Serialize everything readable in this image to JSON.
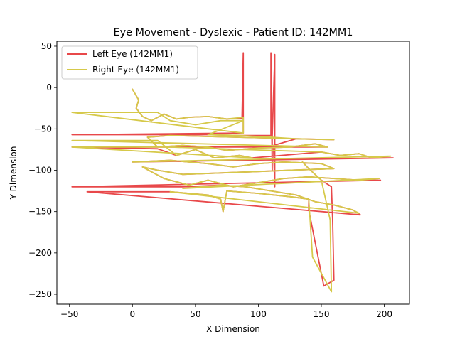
{
  "chart_data": {
    "type": "line",
    "title": "Eye Movement - Dyslexic - Patient ID: 142MM1",
    "xlabel": "X Dimension",
    "ylabel": "Y Dimension",
    "xlim": [
      -60,
      220
    ],
    "ylim": [
      -262,
      56
    ],
    "xticks": [
      -50,
      0,
      50,
      100,
      150,
      200
    ],
    "yticks": [
      50,
      0,
      -50,
      -100,
      -150,
      -200,
      -250
    ],
    "grid": false,
    "legend_position": "top-left",
    "series": [
      {
        "name": "Left Eye (142MM1)",
        "color": "#e8484a",
        "points": [
          [
            0,
            -2
          ],
          [
            5,
            -15
          ],
          [
            3,
            -25
          ],
          [
            8,
            -35
          ],
          [
            15,
            -40
          ],
          [
            25,
            -32
          ],
          [
            35,
            -38
          ],
          [
            45,
            -36
          ],
          [
            60,
            -35
          ],
          [
            75,
            -38
          ],
          [
            87,
            -37
          ],
          [
            88,
            42
          ],
          [
            88,
            -55
          ],
          [
            -48,
            -57
          ],
          [
            60,
            -57
          ],
          [
            85,
            -58
          ],
          [
            110,
            -58
          ],
          [
            110,
            42
          ],
          [
            111,
            -100
          ],
          [
            111,
            -60
          ],
          [
            113,
            40
          ],
          [
            113,
            -120
          ],
          [
            112,
            -70
          ],
          [
            130,
            -62
          ],
          [
            160,
            -63
          ],
          [
            30,
            -58
          ],
          [
            12,
            -60
          ],
          [
            20,
            -72
          ],
          [
            40,
            -70
          ],
          [
            60,
            -72
          ],
          [
            75,
            -76
          ],
          [
            100,
            -73
          ],
          [
            125,
            -72
          ],
          [
            145,
            -68
          ],
          [
            155,
            -72
          ],
          [
            -48,
            -72
          ],
          [
            20,
            -74
          ],
          [
            35,
            -82
          ],
          [
            50,
            -75
          ],
          [
            65,
            -85
          ],
          [
            85,
            -82
          ],
          [
            95,
            -85
          ],
          [
            150,
            -78
          ],
          [
            165,
            -82
          ],
          [
            180,
            -80
          ],
          [
            190,
            -85
          ],
          [
            207,
            -85
          ],
          [
            0,
            -90
          ],
          [
            30,
            -88
          ],
          [
            60,
            -92
          ],
          [
            80,
            -96
          ],
          [
            100,
            -92
          ],
          [
            120,
            -90
          ],
          [
            150,
            -92
          ],
          [
            160,
            -98
          ],
          [
            40,
            -105
          ],
          [
            20,
            -100
          ],
          [
            8,
            -96
          ],
          [
            25,
            -110
          ],
          [
            45,
            -118
          ],
          [
            60,
            -112
          ],
          [
            80,
            -120
          ],
          [
            100,
            -115
          ],
          [
            120,
            -110
          ],
          [
            140,
            -108
          ],
          [
            160,
            -110
          ],
          [
            180,
            -112
          ],
          [
            197,
            -112
          ],
          [
            -48,
            -120
          ],
          [
            40,
            -120
          ],
          [
            70,
            -118
          ],
          [
            90,
            -120
          ],
          [
            110,
            -125
          ],
          [
            130,
            -130
          ],
          [
            145,
            -138
          ],
          [
            160,
            -142
          ],
          [
            175,
            -148
          ],
          [
            181,
            -154
          ],
          [
            -36,
            -126
          ],
          [
            30,
            -126
          ],
          [
            60,
            -130
          ],
          [
            70,
            -135
          ],
          [
            72,
            -150
          ],
          [
            75,
            -125
          ],
          [
            100,
            -128
          ],
          [
            125,
            -132
          ],
          [
            140,
            -135
          ],
          [
            140,
            -148
          ],
          [
            152,
            -240
          ],
          [
            160,
            -233
          ],
          [
            159,
            -160
          ],
          [
            158,
            -120
          ],
          [
            150,
            -112
          ],
          [
            140,
            -98
          ],
          [
            135,
            -90
          ]
        ]
      },
      {
        "name": "Right Eye (142MM1)",
        "color": "#d6c94a",
        "points": [
          [
            0,
            -2
          ],
          [
            5,
            -15
          ],
          [
            3,
            -25
          ],
          [
            8,
            -35
          ],
          [
            15,
            -40
          ],
          [
            25,
            -32
          ],
          [
            35,
            -38
          ],
          [
            45,
            -36
          ],
          [
            60,
            -35
          ],
          [
            75,
            -38
          ],
          [
            88,
            -36
          ],
          [
            88,
            -55
          ],
          [
            -48,
            -30
          ],
          [
            20,
            -30
          ],
          [
            30,
            -40
          ],
          [
            50,
            -45
          ],
          [
            70,
            -40
          ],
          [
            88,
            -40
          ],
          [
            60,
            -57
          ],
          [
            85,
            -58
          ],
          [
            110,
            -60
          ],
          [
            130,
            -62
          ],
          [
            160,
            -63
          ],
          [
            30,
            -58
          ],
          [
            12,
            -60
          ],
          [
            20,
            -72
          ],
          [
            40,
            -70
          ],
          [
            60,
            -72
          ],
          [
            75,
            -76
          ],
          [
            100,
            -73
          ],
          [
            125,
            -72
          ],
          [
            145,
            -68
          ],
          [
            155,
            -72
          ],
          [
            -48,
            -64
          ],
          [
            20,
            -64
          ],
          [
            35,
            -82
          ],
          [
            50,
            -75
          ],
          [
            65,
            -85
          ],
          [
            85,
            -82
          ],
          [
            95,
            -85
          ],
          [
            -48,
            -72
          ],
          [
            30,
            -72
          ],
          [
            150,
            -78
          ],
          [
            165,
            -82
          ],
          [
            180,
            -80
          ],
          [
            190,
            -85
          ],
          [
            205,
            -83
          ],
          [
            0,
            -90
          ],
          [
            30,
            -88
          ],
          [
            60,
            -92
          ],
          [
            80,
            -96
          ],
          [
            100,
            -92
          ],
          [
            120,
            -90
          ],
          [
            150,
            -92
          ],
          [
            160,
            -98
          ],
          [
            40,
            -105
          ],
          [
            20,
            -100
          ],
          [
            8,
            -96
          ],
          [
            25,
            -110
          ],
          [
            45,
            -118
          ],
          [
            60,
            -112
          ],
          [
            80,
            -120
          ],
          [
            100,
            -115
          ],
          [
            120,
            -110
          ],
          [
            140,
            -108
          ],
          [
            160,
            -110
          ],
          [
            180,
            -112
          ],
          [
            196,
            -110
          ],
          [
            40,
            -122
          ],
          [
            70,
            -118
          ],
          [
            90,
            -120
          ],
          [
            110,
            -125
          ],
          [
            130,
            -130
          ],
          [
            145,
            -138
          ],
          [
            160,
            -142
          ],
          [
            175,
            -148
          ],
          [
            180,
            -152
          ],
          [
            30,
            -126
          ],
          [
            60,
            -130
          ],
          [
            70,
            -135
          ],
          [
            72,
            -150
          ],
          [
            75,
            -125
          ],
          [
            100,
            -128
          ],
          [
            125,
            -132
          ],
          [
            140,
            -135
          ],
          [
            143,
            -205
          ],
          [
            158,
            -247
          ],
          [
            157,
            -160
          ],
          [
            150,
            -112
          ],
          [
            140,
            -98
          ],
          [
            135,
            -90
          ]
        ]
      }
    ]
  }
}
